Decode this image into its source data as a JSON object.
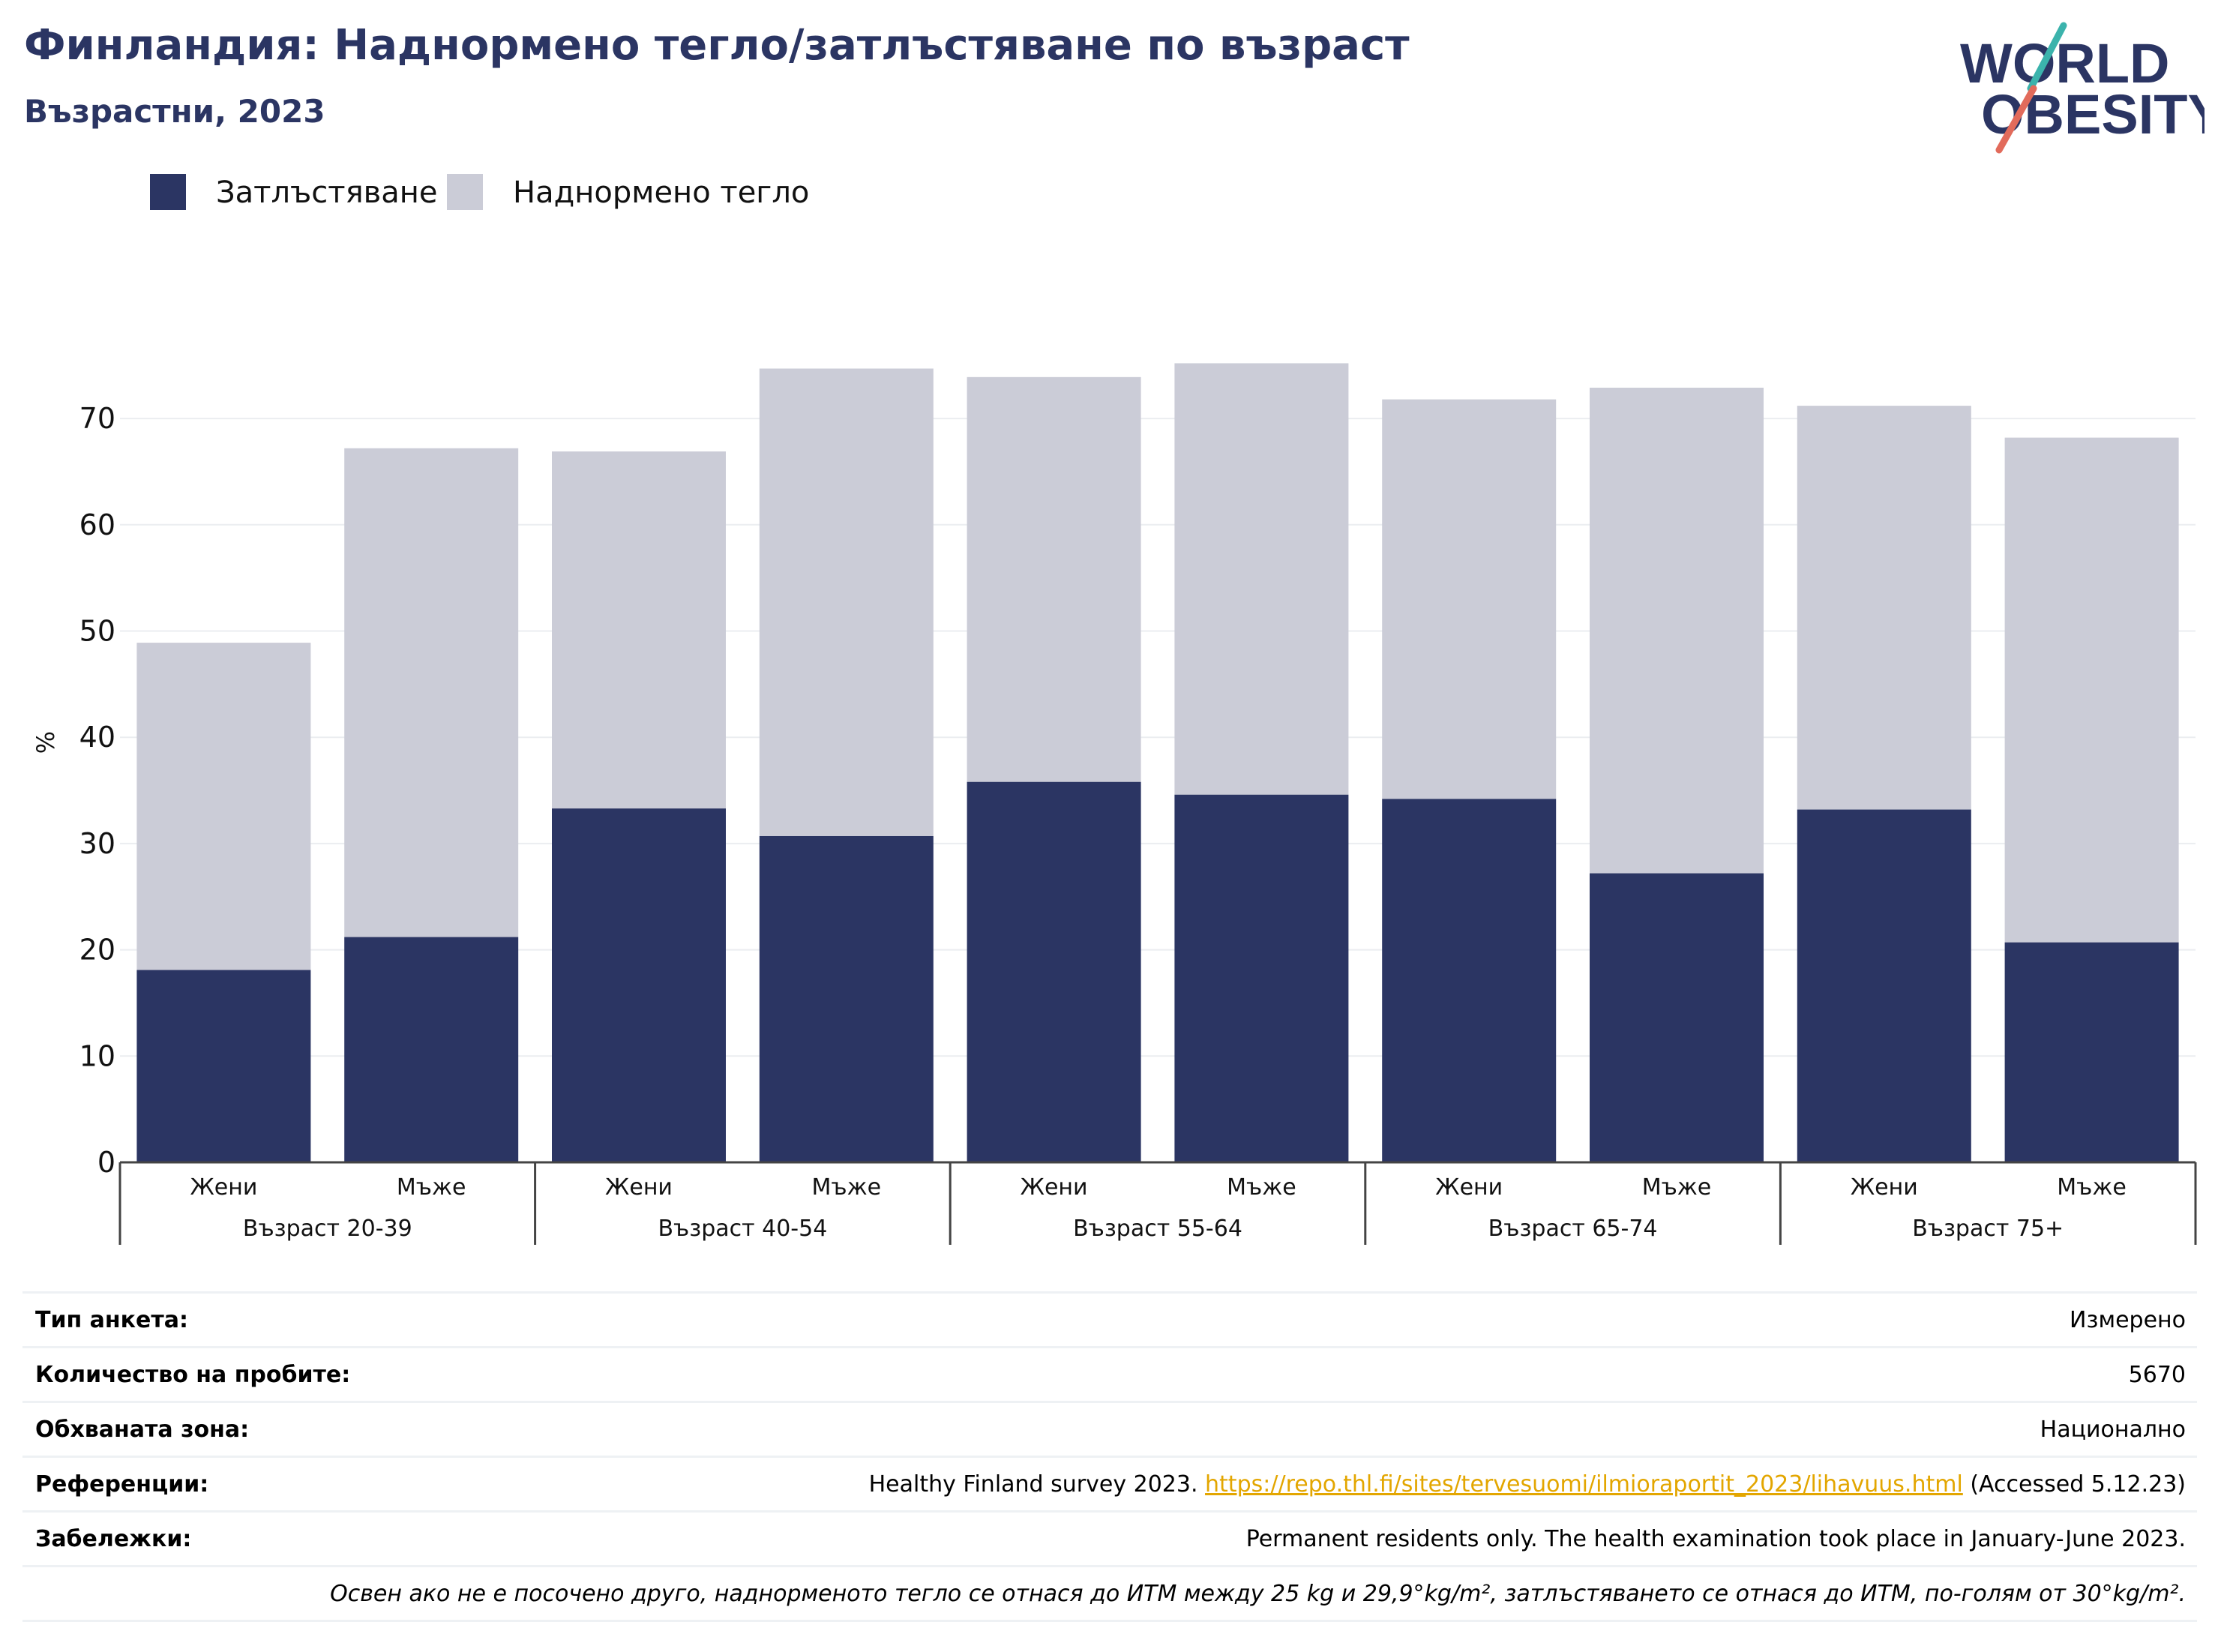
{
  "header": {
    "title": "Финландия: Наднормено тегло/затлъстяване по възраст",
    "subtitle": "Възрастни, 2023"
  },
  "logo": {
    "line1": "WORLD",
    "line2": "OBESITY",
    "icon": "world-obesity-logo"
  },
  "legend": {
    "obesity_label": "Затлъстяване",
    "overweight_label": "Наднормено тегло"
  },
  "colors": {
    "obesity": "#2b3563",
    "overweight": "#cbccd7",
    "accent_teal": "#3bb3ac",
    "accent_red": "#e26b5b"
  },
  "chart_data": {
    "type": "bar",
    "stacked": true,
    "ylabel": "%",
    "ylim": [
      0,
      75
    ],
    "yticks": [
      0,
      10,
      20,
      30,
      40,
      50,
      60,
      70
    ],
    "grid": true,
    "legend_position": "top-left",
    "groups": [
      "Възраст 20-39",
      "Възраст 40-54",
      "Възраст 55-64",
      "Възраст 65-74",
      "Възраст 75+"
    ],
    "sub_categories": [
      "Жени",
      "Мъже"
    ],
    "categories": [
      "Жени",
      "Мъже",
      "Жени",
      "Мъже",
      "Жени",
      "Мъже",
      "Жени",
      "Мъже",
      "Жени",
      "Мъже"
    ],
    "series": [
      {
        "name": "Затлъстяване",
        "values": [
          18.1,
          21.2,
          33.3,
          30.7,
          35.8,
          34.6,
          34.2,
          27.2,
          33.2,
          20.7
        ]
      },
      {
        "name": "Наднормено тегло",
        "values": [
          30.8,
          46.0,
          33.6,
          44.0,
          38.1,
          40.6,
          37.6,
          45.7,
          38.0,
          47.5
        ]
      }
    ]
  },
  "info": {
    "rows": [
      {
        "label": "Тип анкета:",
        "value": "Измерено"
      },
      {
        "label": "Количество на пробите:",
        "value": "5670"
      },
      {
        "label": "Обхваната зона:",
        "value": "Национално"
      },
      {
        "label": "Референции:",
        "value_prefix": "Healthy Finland survey 2023. ",
        "link": "https://repo.thl.fi/sites/tervesuomi/ilmioraportit_2023/lihavuus.html",
        "value_suffix": " (Accessed 5.12.23)"
      },
      {
        "label": "Забележки:",
        "value": "Permanent residents only. The health examination took place in January-June 2023."
      }
    ],
    "footnote": "Освен ако не е посочено друго, наднорменото тегло се отнася до ИТМ между 25 kg и 29,9°kg/m², затлъстяването се отнася до ИТМ, по-голям от 30°kg/m²."
  }
}
